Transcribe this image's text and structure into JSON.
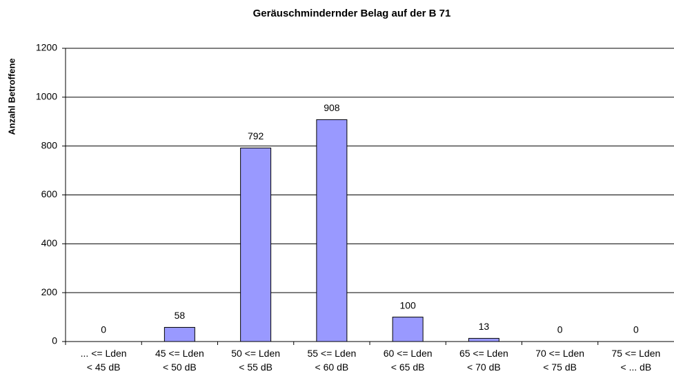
{
  "chart_data": {
    "type": "bar",
    "title": "Geräuschmindernder Belag auf der B 71",
    "y_label": "Anzahl Betroffene",
    "categories": [
      "... <= Lden\n< 45 dB",
      "45 <= Lden\n< 50 dB",
      "50 <= Lden\n< 55 dB",
      "55 <= Lden\n< 60 dB",
      "60 <= Lden\n< 65 dB",
      "65 <= Lden\n< 70 dB",
      "70 <= Lden\n< 75 dB",
      "75 <= Lden\n< ... dB"
    ],
    "values": [
      0,
      58,
      792,
      908,
      100,
      13,
      0,
      0
    ],
    "color": "#9999ff",
    "ylim": [
      0,
      1200
    ],
    "yticks": [
      0,
      200,
      400,
      600,
      800,
      1000,
      1200
    ],
    "grid": true
  }
}
